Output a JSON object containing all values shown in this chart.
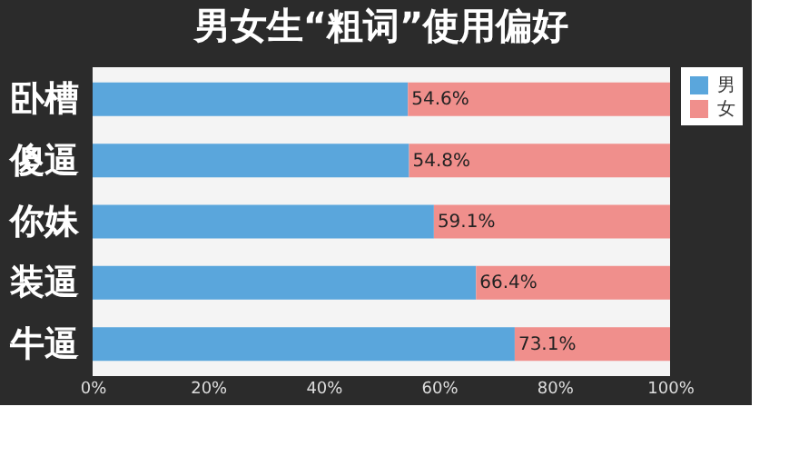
{
  "chart_data": {
    "type": "bar",
    "orientation": "horizontal",
    "stacked": true,
    "title": "男女生“粗词”使用偏好",
    "categories": [
      "卧槽",
      "傻逼",
      "你妹",
      "装逼",
      "牛逼"
    ],
    "series": [
      {
        "name": "男",
        "color": "#5aa6dc",
        "values": [
          54.6,
          54.8,
          59.1,
          66.4,
          73.1
        ],
        "value_labels": [
          "54.6%",
          "54.8%",
          "59.1%",
          "66.4%",
          "73.1%"
        ]
      },
      {
        "name": "女",
        "color": "#f08f8c",
        "values": [
          45.4,
          45.2,
          40.9,
          33.6,
          26.9
        ]
      }
    ],
    "xlim": [
      0,
      100
    ],
    "xticks": [
      {
        "value": 0,
        "label": "0%"
      },
      {
        "value": 20,
        "label": "20%"
      },
      {
        "value": 40,
        "label": "40%"
      },
      {
        "value": 60,
        "label": "60%"
      },
      {
        "value": 80,
        "label": "80%"
      },
      {
        "value": 100,
        "label": "100%"
      }
    ],
    "legend": "right",
    "grid": false
  }
}
